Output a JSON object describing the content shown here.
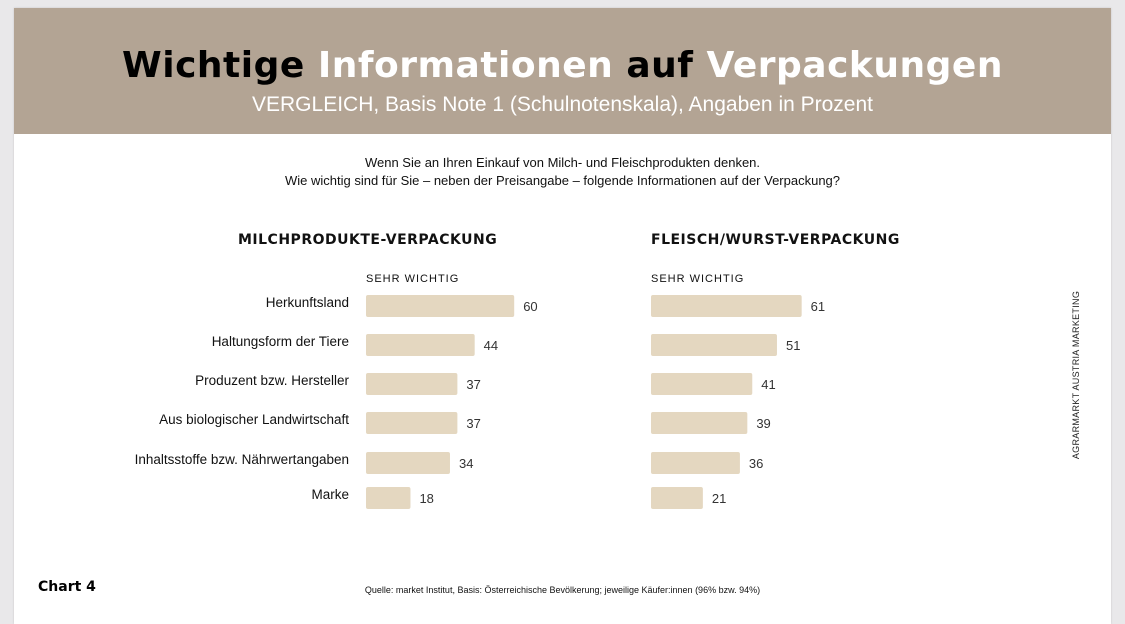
{
  "header": {
    "title_parts": [
      "Wichtige",
      "Informationen",
      "auf",
      "Verpackungen"
    ],
    "subtitle": "VERGLEICH, Basis Note 1 (Schulnotenskala), Angaben in Prozent",
    "background_color": "#b3a494"
  },
  "question": {
    "line1": "Wenn Sie an Ihren Einkauf von Milch- und Fleischprodukten denken.",
    "line2": "Wie wichtig sind für Sie – neben der Preisangabe – folgende Informationen auf der Verpackung?"
  },
  "chart_data": [
    {
      "type": "bar",
      "orientation": "horizontal",
      "title": "MILCHPRODUKTE-VERPACKUNG",
      "categories": [
        "Herkunftsland",
        "Haltungsform der Tiere",
        "Produzent bzw. Hersteller",
        "Aus biologischer Landwirtschaft",
        "Inhaltsstoffe bzw. Nährwertangaben",
        "Marke"
      ],
      "series": [
        {
          "name": "SEHR WICHTIG",
          "values": [
            60,
            44,
            37,
            37,
            34,
            18
          ],
          "color": "#e4d7c0"
        }
      ],
      "xlim": [
        0,
        100
      ],
      "grid": false
    },
    {
      "type": "bar",
      "orientation": "horizontal",
      "title": "FLEISCH/WURST-VERPACKUNG",
      "categories": [
        "Herkunftsland",
        "Haltungsform der Tiere",
        "Produzent bzw. Hersteller",
        "Aus biologischer Landwirtschaft",
        "Inhaltsstoffe bzw. Nährwertangaben",
        "Marke"
      ],
      "series": [
        {
          "name": "SEHR WICHTIG",
          "values": [
            61,
            51,
            41,
            39,
            36,
            21
          ],
          "color": "#e4d7c0"
        }
      ],
      "xlim": [
        0,
        100
      ],
      "grid": false
    }
  ],
  "footer": {
    "chart_number": "Chart 4",
    "source": "Quelle: market Institut, Basis: Österreichische Bevölkerung; jeweilige Käufer:innen (96% bzw. 94%)",
    "side_credit": "AGRARMARKT AUSTRIA MARKETING"
  }
}
